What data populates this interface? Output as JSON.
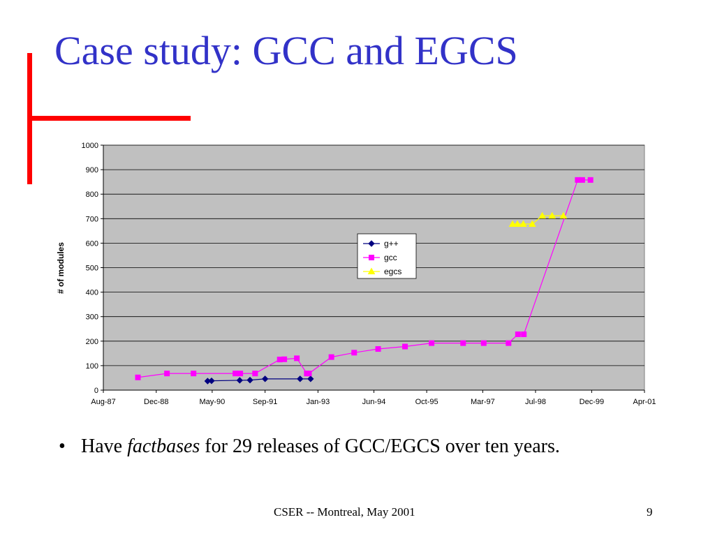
{
  "slide": {
    "title": "Case study:  GCC and EGCS",
    "bullet": {
      "marker": "•",
      "before": "Have ",
      "emphasis": "factbases",
      "after": " for 29 releases of GCC/EGCS over ten years."
    },
    "footer_center": "CSER -- Montreal, May 2001",
    "page_number": "9",
    "accent_color": "#ff0000",
    "title_color": "#3232c8"
  },
  "chart_data": {
    "type": "line",
    "title": "",
    "xlabel": "",
    "ylabel": "# of modules",
    "ylim": [
      0,
      1000
    ],
    "y_ticks": [
      "0",
      "100",
      "200",
      "300",
      "400",
      "500",
      "600",
      "700",
      "800",
      "900",
      "1000"
    ],
    "x_ticks": [
      {
        "label": "Aug-87",
        "date": "1987-08-01"
      },
      {
        "label": "Dec-88",
        "date": "1988-12-01"
      },
      {
        "label": "May-90",
        "date": "1990-05-01"
      },
      {
        "label": "Sep-91",
        "date": "1991-09-01"
      },
      {
        "label": "Jan-93",
        "date": "1993-01-01"
      },
      {
        "label": "Jun-94",
        "date": "1994-06-01"
      },
      {
        "label": "Oct-95",
        "date": "1995-10-01"
      },
      {
        "label": "Mar-97",
        "date": "1997-03-01"
      },
      {
        "label": "Jul-98",
        "date": "1998-07-01"
      },
      {
        "label": "Dec-99",
        "date": "1999-12-01"
      },
      {
        "label": "Apr-01",
        "date": "2001-04-01"
      }
    ],
    "grid": true,
    "plot_background": "#c0c0c0",
    "legend_position": "center",
    "series": [
      {
        "name": "g++",
        "color": "#000080",
        "marker": "diamond",
        "points": [
          {
            "x": "1990-03-20",
            "y": 37
          },
          {
            "x": "1990-04-25",
            "y": 38
          },
          {
            "x": "1991-01-10",
            "y": 40
          },
          {
            "x": "1991-04-15",
            "y": 41
          },
          {
            "x": "1991-09-01",
            "y": 46
          },
          {
            "x": "1992-07-20",
            "y": 46
          },
          {
            "x": "1992-10-25",
            "y": 46
          }
        ]
      },
      {
        "name": "gcc",
        "color": "#ff00ff",
        "marker": "square",
        "points": [
          {
            "x": "1988-06-15",
            "y": 52
          },
          {
            "x": "1989-03-10",
            "y": 68
          },
          {
            "x": "1989-11-10",
            "y": 68
          },
          {
            "x": "1990-12-01",
            "y": 68
          },
          {
            "x": "1991-01-15",
            "y": 68
          },
          {
            "x": "1991-06-01",
            "y": 68
          },
          {
            "x": "1992-01-15",
            "y": 125
          },
          {
            "x": "1992-02-25",
            "y": 126
          },
          {
            "x": "1992-06-20",
            "y": 130
          },
          {
            "x": "1992-09-20",
            "y": 68
          },
          {
            "x": "1992-10-10",
            "y": 68
          },
          {
            "x": "1993-05-05",
            "y": 135
          },
          {
            "x": "1993-12-01",
            "y": 153
          },
          {
            "x": "1994-07-10",
            "y": 168
          },
          {
            "x": "1995-03-15",
            "y": 178
          },
          {
            "x": "1995-11-15",
            "y": 192
          },
          {
            "x": "1996-09-01",
            "y": 192
          },
          {
            "x": "1997-03-10",
            "y": 192
          },
          {
            "x": "1997-10-25",
            "y": 192
          },
          {
            "x": "1998-01-20",
            "y": 228
          },
          {
            "x": "1998-03-15",
            "y": 228
          },
          {
            "x": "1999-07-25",
            "y": 858
          },
          {
            "x": "1999-09-05",
            "y": 858
          },
          {
            "x": "1999-11-20",
            "y": 858
          }
        ]
      },
      {
        "name": "egcs",
        "color": "#ffff00",
        "marker": "triangle",
        "points": [
          {
            "x": "1997-12-01",
            "y": 678
          },
          {
            "x": "1998-01-15",
            "y": 678
          },
          {
            "x": "1998-03-10",
            "y": 678
          },
          {
            "x": "1998-06-01",
            "y": 678
          },
          {
            "x": "1998-09-01",
            "y": 712
          },
          {
            "x": "1998-12-01",
            "y": 712
          },
          {
            "x": "1999-03-15",
            "y": 712
          }
        ]
      }
    ]
  }
}
